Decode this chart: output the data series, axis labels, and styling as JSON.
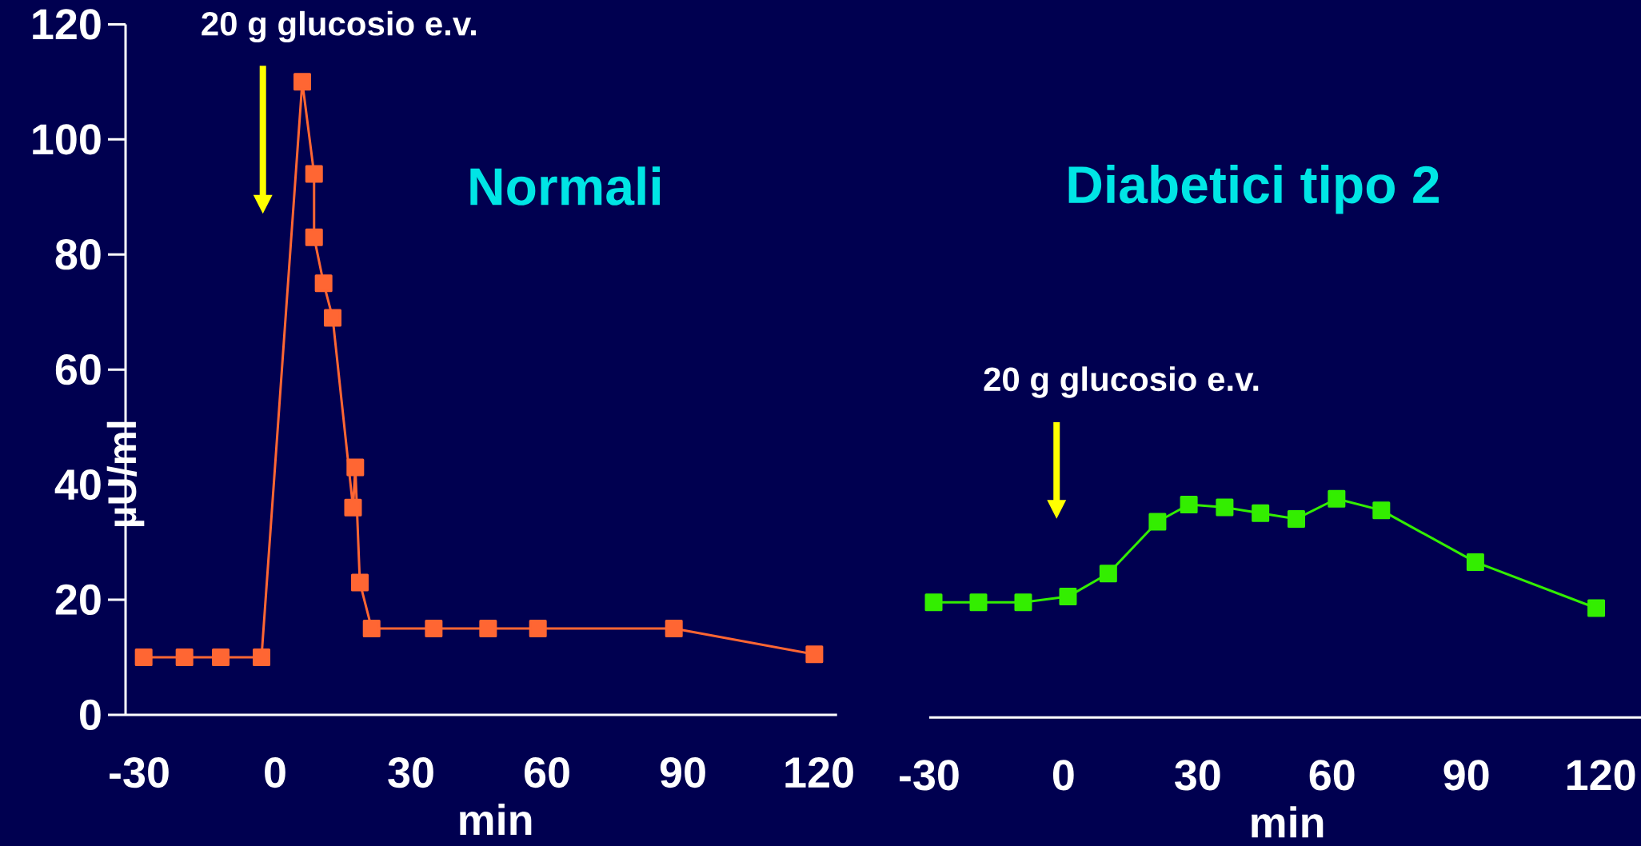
{
  "chart_data": [
    {
      "type": "line",
      "title": "Normali",
      "xlabel": "min",
      "ylabel": "µU/ml",
      "xlim": [
        -33,
        124
      ],
      "ylim": [
        0,
        120
      ],
      "xticks": [
        -30,
        0,
        30,
        60,
        90,
        120
      ],
      "yticks": [
        0,
        20,
        40,
        60,
        80,
        100,
        120
      ],
      "marker": "square",
      "x": [
        -29,
        -20,
        -12,
        -3,
        6,
        8.6,
        8.6,
        10.7,
        12.7,
        17.2,
        17.7,
        18.7,
        21.3,
        35,
        47,
        58,
        88,
        119
      ],
      "series": [
        {
          "color": "#ff6633",
          "values": [
            10,
            10,
            10,
            10,
            110,
            94,
            83,
            75,
            69,
            36,
            43,
            23,
            15,
            15,
            15,
            15,
            15,
            10.5
          ]
        }
      ],
      "annotations": [
        "20 g glucosio e.v."
      ]
    },
    {
      "type": "line",
      "title": "Diabetici tipo 2",
      "xlabel": "min",
      "xlim": [
        -30,
        129
      ],
      "ylim": [
        0,
        120
      ],
      "xticks": [
        -30,
        0,
        30,
        60,
        90,
        120
      ],
      "tick_labels": "x",
      "marker": "square",
      "x": [
        -29,
        -19,
        -9,
        1,
        10,
        21,
        28,
        36,
        44,
        52,
        61,
        71,
        92,
        119
      ],
      "series": [
        {
          "color": "#33ee00",
          "values": [
            20,
            20,
            20,
            21,
            25,
            34,
            37,
            36.5,
            35.5,
            34.5,
            38,
            36,
            27,
            19
          ]
        }
      ],
      "annotations": [
        "20 g glucosio e.v."
      ]
    }
  ]
}
